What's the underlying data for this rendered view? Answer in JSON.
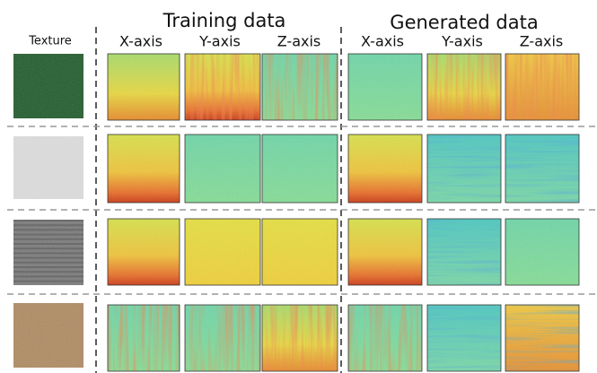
{
  "header": {
    "texture": "Texture",
    "groups": [
      {
        "title": "Training data",
        "axes": [
          "X-axis",
          "Y-axis",
          "Z-axis"
        ]
      },
      {
        "title": "Generated data",
        "axes": [
          "X-axis",
          "Y-axis",
          "Z-axis"
        ]
      }
    ]
  }
}
